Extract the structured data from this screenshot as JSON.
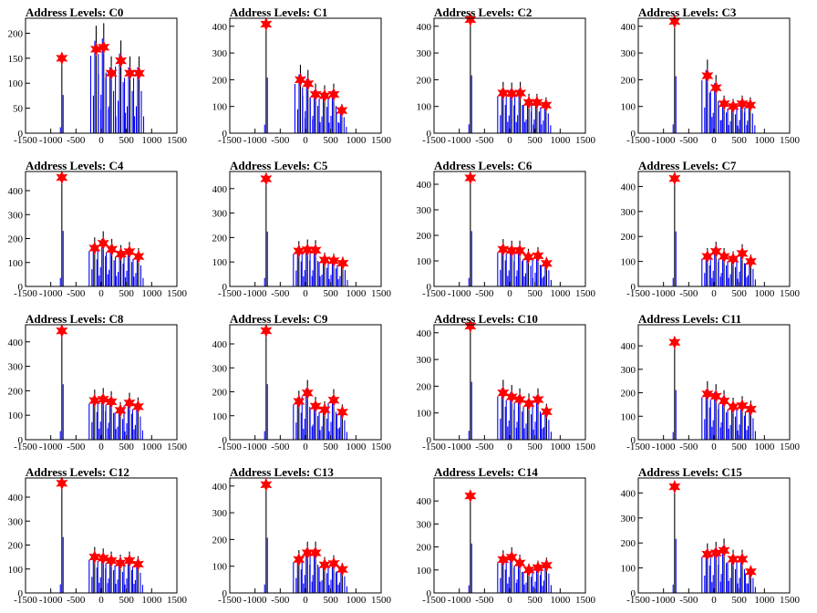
{
  "colors": {
    "background": "#ffffff",
    "histogram": "#0000ff",
    "histogram_dark": "#000000",
    "marker": "#ff0000",
    "frame": "#000000"
  },
  "chart_data": [
    {
      "type": "histogram",
      "title": "Address Levels: C0",
      "xlim": [
        -1500,
        1500
      ],
      "ylim": [
        0,
        230
      ],
      "xticks": [
        -1500,
        -1000,
        -500,
        0,
        500,
        1000,
        1500
      ],
      "xtick_labels": [
        "-1500",
        "-1000",
        "-500",
        "0",
        "500",
        "1000",
        "1500"
      ],
      "yticks": [
        0,
        50,
        100,
        150,
        200
      ],
      "ytick_labels": [
        "0",
        "50",
        "100",
        "150",
        "200"
      ],
      "peaks": [
        {
          "x": -780,
          "y": 150
        },
        {
          "x": -100,
          "y": 168
        },
        {
          "x": 50,
          "y": 172
        },
        {
          "x": 200,
          "y": 120
        },
        {
          "x": 390,
          "y": 145
        },
        {
          "x": 570,
          "y": 120
        },
        {
          "x": 750,
          "y": 120
        }
      ]
    },
    {
      "type": "histogram",
      "title": "Address Levels: C1",
      "xlim": [
        -1500,
        1500
      ],
      "ylim": [
        0,
        430
      ],
      "xticks": [
        -1500,
        -1000,
        -500,
        0,
        500,
        1000,
        1500
      ],
      "xtick_labels": [
        "-1500",
        "-1000",
        "-500",
        "0",
        "500",
        "1000",
        "1500"
      ],
      "yticks": [
        0,
        100,
        200,
        300,
        400
      ],
      "ytick_labels": [
        "0",
        "100",
        "200",
        "300",
        "400"
      ],
      "peaks": [
        {
          "x": -780,
          "y": 408
        },
        {
          "x": -100,
          "y": 200
        },
        {
          "x": 50,
          "y": 185
        },
        {
          "x": 200,
          "y": 145
        },
        {
          "x": 380,
          "y": 140
        },
        {
          "x": 560,
          "y": 145
        },
        {
          "x": 720,
          "y": 85
        }
      ]
    },
    {
      "type": "histogram",
      "title": "Address Levels: C2",
      "xlim": [
        -1500,
        1500
      ],
      "ylim": [
        0,
        430
      ],
      "xticks": [
        -1500,
        -1000,
        -500,
        0,
        500,
        1000,
        1500
      ],
      "xtick_labels": [
        "-1500",
        "-1000",
        "-500",
        "0",
        "500",
        "1000",
        "1500"
      ],
      "yticks": [
        0,
        100,
        200,
        300,
        400
      ],
      "ytick_labels": [
        "0",
        "100",
        "200",
        "300",
        "400"
      ],
      "peaks": [
        {
          "x": -780,
          "y": 425
        },
        {
          "x": -130,
          "y": 150
        },
        {
          "x": 40,
          "y": 148
        },
        {
          "x": 210,
          "y": 150
        },
        {
          "x": 380,
          "y": 115
        },
        {
          "x": 540,
          "y": 115
        },
        {
          "x": 720,
          "y": 105
        }
      ]
    },
    {
      "type": "histogram",
      "title": "Address Levels: C3",
      "xlim": [
        -1500,
        1500
      ],
      "ylim": [
        0,
        430
      ],
      "xticks": [
        -1500,
        -1000,
        -500,
        0,
        500,
        1000,
        1500
      ],
      "xtick_labels": [
        "-1500",
        "-1000",
        "-500",
        "0",
        "500",
        "1000",
        "1500"
      ],
      "yticks": [
        0,
        100,
        200,
        300,
        400
      ],
      "ytick_labels": [
        "0",
        "100",
        "200",
        "300",
        "400"
      ],
      "peaks": [
        {
          "x": -780,
          "y": 418
        },
        {
          "x": -130,
          "y": 215
        },
        {
          "x": 40,
          "y": 170
        },
        {
          "x": 200,
          "y": 110
        },
        {
          "x": 380,
          "y": 100
        },
        {
          "x": 560,
          "y": 110
        },
        {
          "x": 720,
          "y": 105
        }
      ]
    },
    {
      "type": "histogram",
      "title": "Address Levels: C4",
      "xlim": [
        -1500,
        1500
      ],
      "ylim": [
        0,
        480
      ],
      "xticks": [
        -1500,
        -1000,
        -500,
        0,
        500,
        1000,
        1500
      ],
      "xtick_labels": [
        "-1500",
        "-1000",
        "-500",
        "0",
        "500",
        "1000",
        "1500"
      ],
      "yticks": [
        0,
        100,
        200,
        300,
        400
      ],
      "ytick_labels": [
        "0",
        "100",
        "200",
        "300",
        "400"
      ],
      "peaks": [
        {
          "x": -780,
          "y": 455
        },
        {
          "x": -130,
          "y": 160
        },
        {
          "x": 40,
          "y": 180
        },
        {
          "x": 210,
          "y": 155
        },
        {
          "x": 390,
          "y": 135
        },
        {
          "x": 560,
          "y": 145
        },
        {
          "x": 740,
          "y": 125
        }
      ]
    },
    {
      "type": "histogram",
      "title": "Address Levels: C5",
      "xlim": [
        -1500,
        1500
      ],
      "ylim": [
        0,
        470
      ],
      "xticks": [
        -1500,
        -1000,
        -500,
        0,
        500,
        1000,
        1500
      ],
      "xtick_labels": [
        "-1500",
        "-1000",
        "-500",
        "0",
        "500",
        "1000",
        "1500"
      ],
      "yticks": [
        0,
        100,
        200,
        300,
        400
      ],
      "ytick_labels": [
        "0",
        "100",
        "200",
        "300",
        "400"
      ],
      "peaks": [
        {
          "x": -780,
          "y": 440
        },
        {
          "x": -130,
          "y": 145
        },
        {
          "x": 40,
          "y": 150
        },
        {
          "x": 200,
          "y": 148
        },
        {
          "x": 380,
          "y": 108
        },
        {
          "x": 560,
          "y": 105
        },
        {
          "x": 740,
          "y": 95
        }
      ]
    },
    {
      "type": "histogram",
      "title": "Address Levels: C6",
      "xlim": [
        -1500,
        1500
      ],
      "ylim": [
        0,
        450
      ],
      "xticks": [
        -1500,
        -1000,
        -500,
        0,
        500,
        1000,
        1500
      ],
      "xtick_labels": [
        "-1500",
        "-1000",
        "-500",
        "0",
        "500",
        "1000",
        "1500"
      ],
      "yticks": [
        0,
        100,
        200,
        300,
        400
      ],
      "ytick_labels": [
        "0",
        "100",
        "200",
        "300",
        "400"
      ],
      "peaks": [
        {
          "x": -780,
          "y": 425
        },
        {
          "x": -130,
          "y": 145
        },
        {
          "x": 40,
          "y": 140
        },
        {
          "x": 200,
          "y": 140
        },
        {
          "x": 370,
          "y": 115
        },
        {
          "x": 560,
          "y": 120
        },
        {
          "x": 730,
          "y": 90
        }
      ]
    },
    {
      "type": "histogram",
      "title": "Address Levels: C7",
      "xlim": [
        -1500,
        1500
      ],
      "ylim": [
        0,
        460
      ],
      "xticks": [
        -1500,
        -1000,
        -500,
        0,
        500,
        1000,
        1500
      ],
      "xtick_labels": [
        "-1500",
        "-1000",
        "-500",
        "0",
        "500",
        "1000",
        "1500"
      ],
      "yticks": [
        0,
        100,
        200,
        300,
        400
      ],
      "ytick_labels": [
        "0",
        "100",
        "200",
        "300",
        "400"
      ],
      "peaks": [
        {
          "x": -780,
          "y": 432
        },
        {
          "x": -130,
          "y": 120
        },
        {
          "x": 40,
          "y": 140
        },
        {
          "x": 200,
          "y": 120
        },
        {
          "x": 380,
          "y": 110
        },
        {
          "x": 560,
          "y": 132
        },
        {
          "x": 730,
          "y": 100
        }
      ]
    },
    {
      "type": "histogram",
      "title": "Address Levels: C8",
      "xlim": [
        -1500,
        1500
      ],
      "ylim": [
        0,
        470
      ],
      "xticks": [
        -1500,
        -1000,
        -500,
        0,
        500,
        1000,
        1500
      ],
      "xtick_labels": [
        "-1500",
        "-1000",
        "-500",
        "0",
        "500",
        "1000",
        "1500"
      ],
      "yticks": [
        0,
        100,
        200,
        300,
        400
      ],
      "ytick_labels": [
        "0",
        "100",
        "200",
        "300",
        "400"
      ],
      "peaks": [
        {
          "x": -780,
          "y": 445
        },
        {
          "x": -130,
          "y": 160
        },
        {
          "x": 40,
          "y": 165
        },
        {
          "x": 200,
          "y": 155
        },
        {
          "x": 380,
          "y": 120
        },
        {
          "x": 560,
          "y": 150
        },
        {
          "x": 730,
          "y": 135
        }
      ]
    },
    {
      "type": "histogram",
      "title": "Address Levels: C9",
      "xlim": [
        -1500,
        1500
      ],
      "ylim": [
        0,
        480
      ],
      "xticks": [
        -1500,
        -1000,
        -500,
        0,
        500,
        1000,
        1500
      ],
      "xtick_labels": [
        "-1500",
        "-1000",
        "-500",
        "0",
        "500",
        "1000",
        "1500"
      ],
      "yticks": [
        0,
        100,
        200,
        300,
        400
      ],
      "ytick_labels": [
        "0",
        "100",
        "200",
        "300",
        "400"
      ],
      "peaks": [
        {
          "x": -780,
          "y": 455
        },
        {
          "x": -130,
          "y": 160
        },
        {
          "x": 40,
          "y": 195
        },
        {
          "x": 200,
          "y": 140
        },
        {
          "x": 380,
          "y": 125
        },
        {
          "x": 560,
          "y": 165
        },
        {
          "x": 730,
          "y": 115
        }
      ]
    },
    {
      "type": "histogram",
      "title": "Address Levels: C10",
      "xlim": [
        -1500,
        1500
      ],
      "ylim": [
        0,
        430
      ],
      "xticks": [
        -1500,
        -1000,
        -500,
        0,
        500,
        1000,
        1500
      ],
      "xtick_labels": [
        "-1500",
        "-1000",
        "-500",
        "0",
        "500",
        "1000",
        "1500"
      ],
      "yticks": [
        0,
        100,
        200,
        300,
        400
      ],
      "ytick_labels": [
        "0",
        "100",
        "200",
        "300",
        "400"
      ],
      "peaks": [
        {
          "x": -780,
          "y": 425
        },
        {
          "x": -130,
          "y": 175
        },
        {
          "x": 40,
          "y": 160
        },
        {
          "x": 200,
          "y": 150
        },
        {
          "x": 380,
          "y": 135
        },
        {
          "x": 560,
          "y": 150
        },
        {
          "x": 730,
          "y": 105
        }
      ]
    },
    {
      "type": "histogram",
      "title": "Address Levels: C11",
      "xlim": [
        -1500,
        1500
      ],
      "ylim": [
        0,
        490
      ],
      "xticks": [
        -1500,
        -1000,
        -500,
        0,
        500,
        1000,
        1500
      ],
      "xtick_labels": [
        "-1500",
        "-1000",
        "-500",
        "0",
        "500",
        "1000",
        "1500"
      ],
      "yticks": [
        0,
        100,
        200,
        300,
        400
      ],
      "ytick_labels": [
        "0",
        "100",
        "200",
        "300",
        "400"
      ],
      "peaks": [
        {
          "x": -780,
          "y": 415
        },
        {
          "x": -130,
          "y": 195
        },
        {
          "x": 40,
          "y": 185
        },
        {
          "x": 200,
          "y": 165
        },
        {
          "x": 380,
          "y": 140
        },
        {
          "x": 560,
          "y": 145
        },
        {
          "x": 730,
          "y": 130
        }
      ]
    },
    {
      "type": "histogram",
      "title": "Address Levels: C12",
      "xlim": [
        -1500,
        1500
      ],
      "ylim": [
        0,
        480
      ],
      "xticks": [
        -1500,
        -1000,
        -500,
        0,
        500,
        1000,
        1500
      ],
      "xtick_labels": [
        "-1500",
        "-1000",
        "-500",
        "0",
        "500",
        "1000",
        "1500"
      ],
      "yticks": [
        0,
        100,
        200,
        300,
        400
      ],
      "ytick_labels": [
        "0",
        "100",
        "200",
        "300",
        "400"
      ],
      "peaks": [
        {
          "x": -780,
          "y": 458
        },
        {
          "x": -130,
          "y": 150
        },
        {
          "x": 40,
          "y": 145
        },
        {
          "x": 200,
          "y": 135
        },
        {
          "x": 380,
          "y": 125
        },
        {
          "x": 560,
          "y": 135
        },
        {
          "x": 730,
          "y": 120
        }
      ]
    },
    {
      "type": "histogram",
      "title": "Address Levels: C13",
      "xlim": [
        -1500,
        1500
      ],
      "ylim": [
        0,
        430
      ],
      "xticks": [
        -1500,
        -1000,
        -500,
        0,
        500,
        1000,
        1500
      ],
      "xtick_labels": [
        "-1500",
        "-1000",
        "-500",
        "0",
        "500",
        "1000",
        "1500"
      ],
      "yticks": [
        0,
        100,
        200,
        300,
        400
      ],
      "ytick_labels": [
        "0",
        "100",
        "200",
        "300",
        "400"
      ],
      "peaks": [
        {
          "x": -780,
          "y": 405
        },
        {
          "x": -130,
          "y": 125
        },
        {
          "x": 40,
          "y": 150
        },
        {
          "x": 200,
          "y": 150
        },
        {
          "x": 380,
          "y": 105
        },
        {
          "x": 560,
          "y": 110
        },
        {
          "x": 730,
          "y": 88
        }
      ]
    },
    {
      "type": "histogram",
      "title": "Address Levels: C14",
      "xlim": [
        -1500,
        1500
      ],
      "ylim": [
        0,
        500
      ],
      "xticks": [
        -1500,
        -1000,
        -500,
        0,
        500,
        1000,
        1500
      ],
      "xtick_labels": [
        "-1500",
        "-1000",
        "-500",
        "0",
        "500",
        "1000",
        "1500"
      ],
      "yticks": [
        0,
        100,
        200,
        300,
        400
      ],
      "ytick_labels": [
        "0",
        "100",
        "200",
        "300",
        "400"
      ],
      "peaks": [
        {
          "x": -780,
          "y": 422
        },
        {
          "x": -130,
          "y": 145
        },
        {
          "x": 40,
          "y": 155
        },
        {
          "x": 200,
          "y": 130
        },
        {
          "x": 380,
          "y": 100
        },
        {
          "x": 560,
          "y": 110
        },
        {
          "x": 730,
          "y": 120
        }
      ]
    },
    {
      "type": "histogram",
      "title": "Address Levels: C15",
      "xlim": [
        -1500,
        1500
      ],
      "ylim": [
        0,
        460
      ],
      "xticks": [
        -1500,
        -1000,
        -500,
        0,
        500,
        1000,
        1500
      ],
      "xtick_labels": [
        "-1500",
        "-1000",
        "-500",
        "0",
        "500",
        "1000",
        "1500"
      ],
      "yticks": [
        0,
        100,
        200,
        300,
        400
      ],
      "ytick_labels": [
        "0",
        "100",
        "200",
        "300",
        "400"
      ],
      "peaks": [
        {
          "x": -780,
          "y": 425
        },
        {
          "x": -130,
          "y": 155
        },
        {
          "x": 40,
          "y": 160
        },
        {
          "x": 200,
          "y": 170
        },
        {
          "x": 380,
          "y": 135
        },
        {
          "x": 560,
          "y": 135
        },
        {
          "x": 730,
          "y": 85
        }
      ]
    }
  ]
}
